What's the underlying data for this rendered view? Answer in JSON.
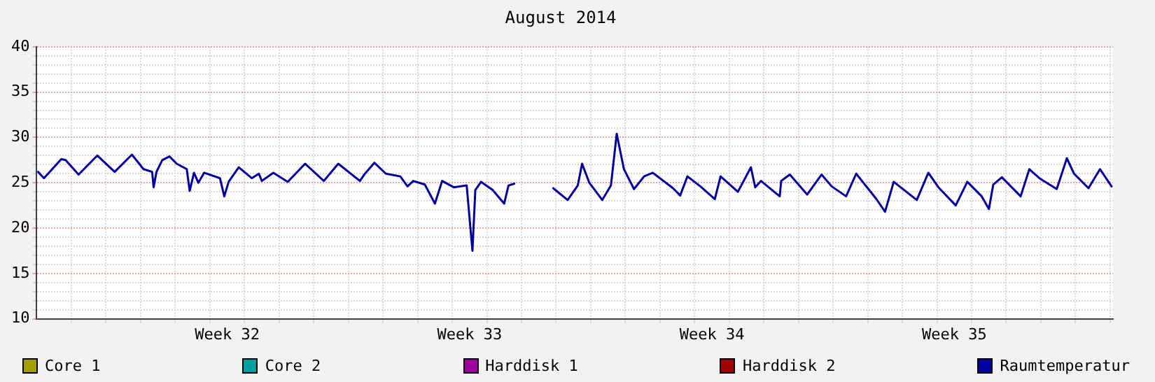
{
  "chart_data": {
    "type": "line",
    "title": "August 2014",
    "xlim": [
      "2014-08-02T00:00",
      "2014-09-02T02:00"
    ],
    "xticks": [
      {
        "value": "2014-08-03T00:00",
        "label": null
      },
      {
        "value": "2014-08-04T00:00",
        "label": null
      },
      {
        "value": "2014-08-05T00:00",
        "label": null
      },
      {
        "value": "2014-08-06T00:00",
        "label": null
      },
      {
        "value": "2014-08-07T00:00",
        "label": null
      },
      {
        "value": "2014-08-07T12:00",
        "label": "Week 32"
      },
      {
        "value": "2014-08-08T00:00",
        "label": null
      },
      {
        "value": "2014-08-09T00:00",
        "label": null
      },
      {
        "value": "2014-08-10T00:00",
        "label": null
      },
      {
        "value": "2014-08-11T00:00",
        "label": null
      },
      {
        "value": "2014-08-12T00:00",
        "label": null
      },
      {
        "value": "2014-08-13T00:00",
        "label": null
      },
      {
        "value": "2014-08-14T00:00",
        "label": null
      },
      {
        "value": "2014-08-14T12:00",
        "label": "Week 33"
      },
      {
        "value": "2014-08-15T00:00",
        "label": null
      },
      {
        "value": "2014-08-16T00:00",
        "label": null
      },
      {
        "value": "2014-08-17T00:00",
        "label": null
      },
      {
        "value": "2014-08-18T00:00",
        "label": null
      },
      {
        "value": "2014-08-19T00:00",
        "label": null
      },
      {
        "value": "2014-08-20T00:00",
        "label": null
      },
      {
        "value": "2014-08-21T00:00",
        "label": null
      },
      {
        "value": "2014-08-21T12:00",
        "label": "Week 34"
      },
      {
        "value": "2014-08-22T00:00",
        "label": null
      },
      {
        "value": "2014-08-23T00:00",
        "label": null
      },
      {
        "value": "2014-08-24T00:00",
        "label": null
      },
      {
        "value": "2014-08-25T00:00",
        "label": null
      },
      {
        "value": "2014-08-26T00:00",
        "label": null
      },
      {
        "value": "2014-08-27T00:00",
        "label": null
      },
      {
        "value": "2014-08-28T00:00",
        "label": null
      },
      {
        "value": "2014-08-28T12:00",
        "label": "Week 35"
      },
      {
        "value": "2014-08-29T00:00",
        "label": null
      },
      {
        "value": "2014-08-30T00:00",
        "label": null
      },
      {
        "value": "2014-08-31T00:00",
        "label": null
      },
      {
        "value": "2014-09-01T00:00",
        "label": null
      },
      {
        "value": "2014-09-02T00:00",
        "label": null
      }
    ],
    "ylim": [
      10,
      40
    ],
    "yticks": [
      10,
      {
        "value": 11,
        "label": null
      },
      {
        "value": 12,
        "label": null
      },
      {
        "value": 13,
        "label": null
      },
      {
        "value": 14,
        "label": null
      },
      15,
      {
        "value": 16,
        "label": null
      },
      {
        "value": 17,
        "label": null
      },
      {
        "value": 18,
        "label": null
      },
      {
        "value": 19,
        "label": null
      },
      20,
      {
        "value": 21,
        "label": null
      },
      {
        "value": 22,
        "label": null
      },
      {
        "value": 23,
        "label": null
      },
      {
        "value": 24,
        "label": null
      },
      25,
      {
        "value": 26,
        "label": null
      },
      {
        "value": 27,
        "label": null
      },
      {
        "value": 28,
        "label": null
      },
      {
        "value": 29,
        "label": null
      },
      30,
      {
        "value": 31,
        "label": null
      },
      {
        "value": 32,
        "label": null
      },
      {
        "value": 33,
        "label": null
      },
      {
        "value": 34,
        "label": null
      },
      35,
      {
        "value": 36,
        "label": null
      },
      {
        "value": 37,
        "label": null
      },
      {
        "value": 38,
        "label": null
      },
      {
        "value": 39,
        "label": null
      },
      40
    ],
    "grid": true,
    "legend": "bottom",
    "marker": "none",
    "line_style": "solid",
    "series": [
      {
        "name": "Core 1",
        "color": "#a0a000"
      },
      {
        "name": "Core 2",
        "color": "#00a0a0"
      },
      {
        "name": "Harddisk 1",
        "color": "#a000a0"
      },
      {
        "name": "Harddisk 2",
        "color": "#a00000"
      },
      {
        "name": "Raumtemperatur",
        "color": "#0000a0",
        "x": [
          "2014-08-02T01:00",
          "2014-08-02T05:00",
          "2014-08-02T17:00",
          "2014-08-02T20:00",
          "2014-08-03T05:00",
          "2014-08-03T18:00",
          "2014-08-04T06:00",
          "2014-08-04T18:00",
          "2014-08-05T02:00",
          "2014-08-05T08:00",
          "2014-08-05T09:00",
          "2014-08-05T11:00",
          "2014-08-05T15:00",
          "2014-08-05T20:00",
          "2014-08-06T01:00",
          "2014-08-06T08:00",
          "2014-08-06T10:00",
          "2014-08-06T13:00",
          "2014-08-06T16:00",
          "2014-08-06T20:00",
          "2014-08-07T07:00",
          "2014-08-07T10:00",
          "2014-08-07T13:00",
          "2014-08-07T20:00",
          "2014-08-08T05:00",
          "2014-08-08T10:00",
          "2014-08-08T12:00",
          "2014-08-08T20:00",
          "2014-08-09T06:00",
          "2014-08-09T18:00",
          "2014-08-10T07:00",
          "2014-08-10T17:00",
          "2014-08-11T08:00",
          "2014-08-11T11:00",
          "2014-08-11T18:00",
          "2014-08-12T02:00",
          "2014-08-12T12:00",
          "2014-08-12T17:00",
          "2014-08-12T21:00",
          "2014-08-13T05:00",
          "2014-08-13T12:00",
          "2014-08-13T17:00",
          "2014-08-14T01:00",
          "2014-08-14T10:00",
          "2014-08-14T14:00",
          "2014-08-14T16:00",
          "2014-08-14T20:00",
          "2014-08-15T04:00",
          "2014-08-15T12:00",
          "2014-08-15T15:00",
          "2014-08-15T19:00",
          "2014-08-16T10:00",
          "2014-08-16T22:00",
          "2014-08-17T08:00",
          "2014-08-17T15:00",
          "2014-08-17T18:00",
          "2014-08-17T23:00",
          "2014-08-18T08:00",
          "2014-08-18T14:00",
          "2014-08-18T18:00",
          "2014-08-18T23:00",
          "2014-08-19T06:00",
          "2014-08-19T13:00",
          "2014-08-19T19:00",
          "2014-08-20T09:00",
          "2014-08-20T14:00",
          "2014-08-20T19:00",
          "2014-08-21T04:00",
          "2014-08-21T14:00",
          "2014-08-21T18:00",
          "2014-08-22T06:00",
          "2014-08-22T15:00",
          "2014-08-22T18:00",
          "2014-08-22T22:00",
          "2014-08-23T11:00",
          "2014-08-23T12:00",
          "2014-08-23T18:00",
          "2014-08-24T06:00",
          "2014-08-24T16:00",
          "2014-08-24T23:00",
          "2014-08-25T09:00",
          "2014-08-25T16:00",
          "2014-08-26T06:00",
          "2014-08-26T12:00",
          "2014-08-26T18:00",
          "2014-08-27T02:00",
          "2014-08-27T10:00",
          "2014-08-27T18:00",
          "2014-08-28T01:00",
          "2014-08-28T13:00",
          "2014-08-28T21:00",
          "2014-08-29T07:00",
          "2014-08-29T12:00",
          "2014-08-29T15:00",
          "2014-08-29T21:00",
          "2014-08-30T10:00",
          "2014-08-30T16:00",
          "2014-08-30T23:00",
          "2014-08-31T11:00",
          "2014-08-31T18:00",
          "2014-08-31T23:00",
          "2014-09-01T09:00",
          "2014-09-01T17:00",
          "2014-09-02T01:00"
        ],
        "values": [
          26.2,
          25.5,
          27.6,
          27.5,
          25.9,
          28.0,
          26.2,
          28.1,
          26.5,
          26.2,
          24.5,
          26.2,
          27.5,
          27.9,
          27.1,
          26.5,
          24.1,
          26.1,
          25.0,
          26.1,
          25.5,
          23.5,
          25.1,
          26.7,
          25.5,
          26.0,
          25.2,
          26.1,
          25.1,
          27.1,
          25.2,
          27.1,
          25.2,
          25.9,
          27.2,
          26.0,
          25.7,
          24.6,
          25.2,
          24.8,
          22.7,
          25.2,
          24.5,
          24.7,
          17.5,
          24.2,
          25.1,
          24.2,
          22.7,
          24.7,
          24.9,
          null,
          24.4,
          23.1,
          24.7,
          27.1,
          25.0,
          23.1,
          24.7,
          30.4,
          26.5,
          24.3,
          25.7,
          26.1,
          24.4,
          23.6,
          25.7,
          24.6,
          23.2,
          25.7,
          24.0,
          26.7,
          24.5,
          25.2,
          23.5,
          25.2,
          25.9,
          23.7,
          25.9,
          24.6,
          23.5,
          26.0,
          23.2,
          21.8,
          25.1,
          24.1,
          23.1,
          26.1,
          24.5,
          22.5,
          25.1,
          23.5,
          22.1,
          24.8,
          25.6,
          23.5,
          26.5,
          25.5,
          24.3,
          27.7,
          26.0,
          24.4,
          26.5,
          24.6
        ]
      }
    ]
  }
}
